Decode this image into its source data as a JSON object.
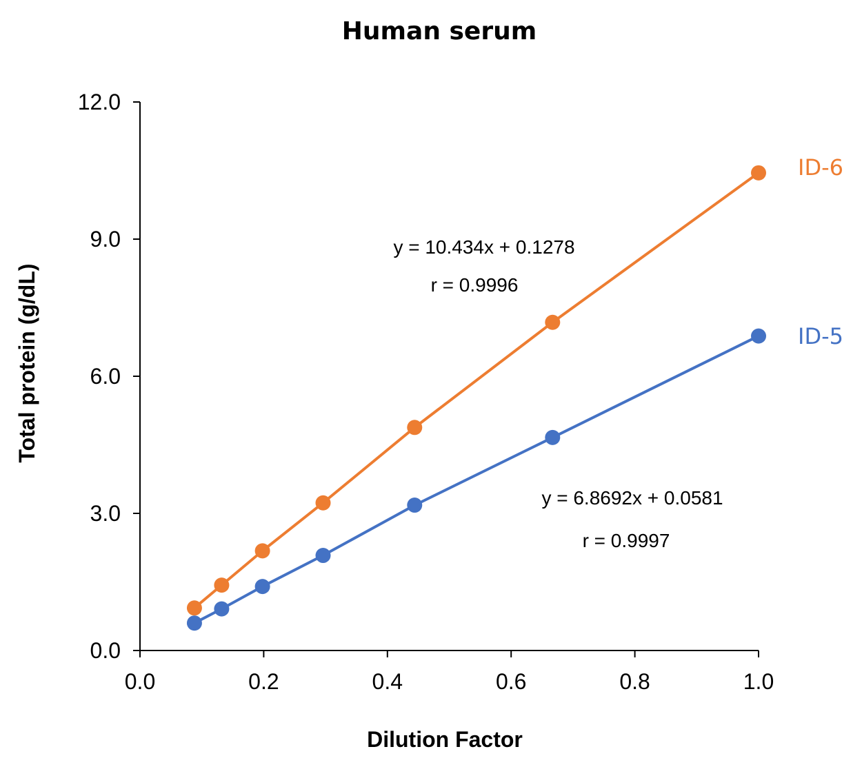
{
  "chart_data": {
    "type": "line",
    "title": "Human serum",
    "xlabel": "Dilution Factor",
    "ylabel": "Total protein (g/dL)",
    "xlim": [
      0.0,
      1.0
    ],
    "ylim": [
      0.0,
      12.0
    ],
    "x_ticks": [
      "0.0",
      "0.2",
      "0.4",
      "0.6",
      "0.8",
      "1.0"
    ],
    "y_ticks": [
      "0.0",
      "3.0",
      "6.0",
      "9.0",
      "12.0"
    ],
    "grid": false,
    "legend": "none",
    "series": [
      {
        "name": "ID-6",
        "color": "#ED7D31",
        "x": [
          0.088,
          0.132,
          0.198,
          0.296,
          0.444,
          0.667,
          1.0
        ],
        "y": [
          0.93,
          1.43,
          2.18,
          3.23,
          4.88,
          7.18,
          10.45
        ],
        "equation": "y = 10.434x + 0.1278",
        "r": "r = 0.9996"
      },
      {
        "name": "ID-5",
        "color": "#4472C4",
        "x": [
          0.088,
          0.132,
          0.198,
          0.296,
          0.444,
          0.667,
          1.0
        ],
        "y": [
          0.6,
          0.91,
          1.4,
          2.08,
          3.18,
          4.66,
          6.88
        ],
        "equation": "y = 6.8692x + 0.0581",
        "r": "r = 0.9997"
      }
    ]
  }
}
